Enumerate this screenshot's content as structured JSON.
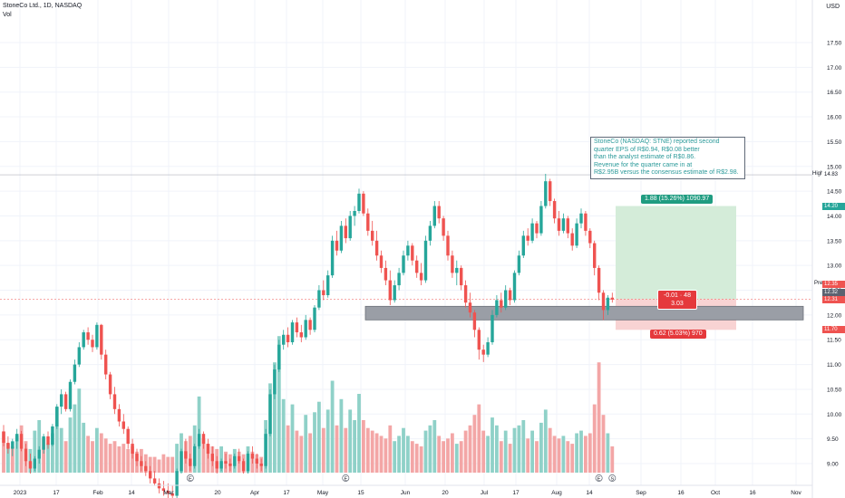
{
  "header": {
    "symbol_title": "StoneCo Ltd., 1D, NASDAQ",
    "volume_label": "Vol",
    "currency": "USD"
  },
  "annotation": {
    "lines": [
      "StoneCo (NASDAQ: STNE) reported second",
      "quarter EPS of R$0.94, R$0.08 better",
      "than the analyst estimate of R$0.86.",
      "Revenue for the quarter came in at",
      "R$2.95B versus the consensus estimate of R$2.98."
    ]
  },
  "position": {
    "profit_label": "1.88 (15.26%) 1090.97",
    "loss_label": "0.62 (5.03%) 970",
    "current_line1": "-0.01 · 48",
    "current_line2": "3.03",
    "target_price": 14.2,
    "entry_price": 12.32,
    "stop_price": 11.7
  },
  "price_tags": {
    "pre_label": "Pre",
    "pre_value": "12.35",
    "last_value": "12.32",
    "close_value": "12.31",
    "target_value": "14.20",
    "stop_value": "11.70",
    "high_label": "High",
    "high_value": "14.83"
  },
  "colors": {
    "up": "#26a69a",
    "down": "#ef5350",
    "up_vol": "#8fd1c8",
    "down_vol": "#f3a6a6",
    "grid": "#f0f3fa",
    "profit_zone": "#d4ecd9",
    "loss_zone": "#f8d3d3",
    "support_zone": "#9a9ea6"
  },
  "chart_data": {
    "type": "candlestick",
    "y_axis_ticks": [
      "17.50",
      "17.00",
      "16.50",
      "16.00",
      "15.50",
      "15.00",
      "14.50",
      "14.00",
      "13.50",
      "13.00",
      "12.50",
      "12.00",
      "11.50",
      "11.00",
      "10.50",
      "10.00",
      "9.50",
      "9.00"
    ],
    "x_axis_ticks": [
      "2023",
      "17",
      "Feb",
      "14",
      "Mar",
      "20",
      "Apr",
      "17",
      "May",
      "15",
      "Jun",
      "20",
      "Jul",
      "17",
      "Aug",
      "14",
      "Sep",
      "16",
      "Oct",
      "16",
      "Nov"
    ],
    "ylim": [
      8.7,
      17.9
    ],
    "support_zone": [
      11.97,
      12.12
    ],
    "high_line": 14.83,
    "event_markers": [
      {
        "label": "E",
        "session": 42
      },
      {
        "label": "E",
        "session": 77
      },
      {
        "label": "E",
        "session": 134
      },
      {
        "label": "S",
        "session": 137
      }
    ],
    "candles": [
      [
        9.65,
        9.78,
        9.35,
        9.42
      ],
      [
        9.42,
        9.55,
        9.2,
        9.3
      ],
      [
        9.3,
        9.5,
        9.15,
        9.45
      ],
      [
        9.45,
        9.7,
        9.3,
        9.6
      ],
      [
        9.6,
        9.66,
        9.25,
        9.3
      ],
      [
        9.3,
        9.4,
        8.95,
        9.05
      ],
      [
        9.05,
        9.2,
        8.8,
        8.9
      ],
      [
        8.9,
        9.15,
        8.85,
        9.1
      ],
      [
        9.1,
        9.35,
        9.0,
        9.28
      ],
      [
        9.28,
        9.6,
        9.2,
        9.55
      ],
      [
        9.55,
        9.65,
        9.3,
        9.38
      ],
      [
        9.38,
        9.8,
        9.35,
        9.75
      ],
      [
        9.75,
        10.2,
        9.7,
        10.15
      ],
      [
        10.15,
        10.5,
        10.0,
        10.4
      ],
      [
        10.4,
        10.45,
        10.05,
        10.1
      ],
      [
        10.1,
        10.7,
        10.05,
        10.65
      ],
      [
        10.65,
        11.1,
        10.6,
        11.0
      ],
      [
        11.0,
        11.45,
        10.95,
        11.35
      ],
      [
        11.35,
        11.7,
        11.3,
        11.65
      ],
      [
        11.65,
        11.75,
        11.4,
        11.5
      ],
      [
        11.5,
        11.6,
        11.25,
        11.35
      ],
      [
        11.35,
        11.85,
        11.3,
        11.8
      ],
      [
        11.8,
        11.82,
        11.1,
        11.2
      ],
      [
        11.2,
        11.3,
        10.7,
        10.8
      ],
      [
        10.8,
        10.85,
        10.3,
        10.4
      ],
      [
        10.4,
        10.55,
        10.0,
        10.1
      ],
      [
        10.1,
        10.2,
        9.75,
        9.85
      ],
      [
        9.85,
        10.0,
        9.6,
        9.7
      ],
      [
        9.7,
        9.75,
        9.3,
        9.4
      ],
      [
        9.4,
        9.5,
        9.1,
        9.2
      ],
      [
        9.2,
        9.3,
        8.95,
        9.05
      ],
      [
        9.05,
        9.15,
        8.85,
        8.95
      ],
      [
        8.95,
        9.05,
        8.75,
        8.85
      ],
      [
        8.85,
        8.95,
        8.6,
        8.7
      ],
      [
        8.7,
        8.85,
        8.55,
        8.6
      ],
      [
        8.6,
        8.7,
        8.4,
        8.5
      ],
      [
        8.5,
        8.65,
        8.35,
        8.45
      ],
      [
        8.45,
        8.6,
        8.3,
        8.4
      ],
      [
        8.4,
        8.55,
        8.25,
        8.35
      ],
      [
        8.35,
        8.9,
        8.3,
        8.85
      ],
      [
        8.85,
        9.3,
        8.8,
        9.25
      ],
      [
        9.25,
        9.5,
        9.0,
        9.1
      ],
      [
        9.1,
        9.2,
        8.85,
        8.95
      ],
      [
        8.95,
        9.4,
        8.9,
        9.35
      ],
      [
        9.35,
        9.7,
        9.3,
        9.6
      ],
      [
        9.6,
        9.65,
        9.3,
        9.4
      ],
      [
        9.4,
        9.5,
        9.1,
        9.2
      ],
      [
        9.2,
        9.35,
        8.95,
        9.05
      ],
      [
        9.05,
        9.15,
        8.8,
        8.9
      ],
      [
        8.9,
        9.1,
        8.85,
        9.05
      ],
      [
        9.05,
        9.2,
        8.9,
        9.0
      ],
      [
        9.0,
        9.1,
        8.85,
        8.95
      ],
      [
        8.95,
        9.2,
        8.9,
        9.15
      ],
      [
        9.15,
        9.3,
        9.0,
        9.05
      ],
      [
        9.05,
        9.1,
        8.8,
        8.85
      ],
      [
        8.85,
        9.25,
        8.8,
        9.2
      ],
      [
        9.2,
        9.35,
        9.0,
        9.1
      ],
      [
        9.1,
        9.2,
        8.9,
        9.0
      ],
      [
        9.0,
        9.1,
        8.85,
        8.95
      ],
      [
        8.95,
        9.7,
        8.9,
        9.6
      ],
      [
        9.6,
        10.5,
        9.55,
        10.4
      ],
      [
        10.4,
        11.0,
        10.3,
        10.9
      ],
      [
        10.9,
        11.5,
        10.85,
        11.4
      ],
      [
        11.4,
        11.7,
        11.3,
        11.6
      ],
      [
        11.6,
        11.75,
        11.35,
        11.45
      ],
      [
        11.45,
        11.9,
        11.4,
        11.85
      ],
      [
        11.85,
        11.95,
        11.55,
        11.65
      ],
      [
        11.65,
        11.8,
        11.45,
        11.55
      ],
      [
        11.55,
        12.0,
        11.5,
        11.9
      ],
      [
        11.9,
        11.95,
        11.6,
        11.7
      ],
      [
        11.7,
        12.2,
        11.65,
        12.15
      ],
      [
        12.15,
        12.6,
        12.1,
        12.5
      ],
      [
        12.5,
        12.7,
        12.3,
        12.4
      ],
      [
        12.4,
        12.9,
        12.35,
        12.8
      ],
      [
        12.8,
        13.6,
        12.75,
        13.5
      ],
      [
        13.5,
        13.7,
        13.2,
        13.3
      ],
      [
        13.3,
        13.9,
        13.25,
        13.8
      ],
      [
        13.8,
        13.95,
        13.45,
        13.55
      ],
      [
        13.55,
        14.1,
        13.5,
        14.0
      ],
      [
        14.0,
        14.2,
        13.8,
        14.1
      ],
      [
        14.1,
        14.55,
        14.05,
        14.45
      ],
      [
        14.45,
        14.5,
        14.0,
        14.05
      ],
      [
        14.05,
        14.15,
        13.6,
        13.7
      ],
      [
        13.7,
        13.9,
        13.4,
        13.5
      ],
      [
        13.5,
        13.7,
        13.1,
        13.2
      ],
      [
        13.2,
        13.3,
        12.85,
        12.95
      ],
      [
        12.95,
        13.1,
        12.6,
        12.7
      ],
      [
        12.7,
        12.9,
        12.2,
        12.3
      ],
      [
        12.3,
        12.7,
        12.25,
        12.6
      ],
      [
        12.6,
        12.95,
        12.5,
        12.85
      ],
      [
        12.85,
        13.3,
        12.8,
        13.2
      ],
      [
        13.2,
        13.5,
        13.1,
        13.4
      ],
      [
        13.4,
        13.45,
        13.0,
        13.1
      ],
      [
        13.1,
        13.2,
        12.75,
        12.85
      ],
      [
        12.85,
        13.05,
        12.6,
        12.7
      ],
      [
        12.7,
        13.6,
        12.65,
        13.5
      ],
      [
        13.5,
        13.9,
        13.4,
        13.8
      ],
      [
        13.8,
        14.3,
        13.75,
        14.2
      ],
      [
        14.2,
        14.3,
        13.85,
        13.95
      ],
      [
        13.95,
        14.0,
        13.5,
        13.6
      ],
      [
        13.6,
        13.7,
        13.1,
        13.2
      ],
      [
        13.2,
        13.3,
        12.75,
        12.85
      ],
      [
        12.85,
        13.1,
        12.6,
        12.95
      ],
      [
        12.95,
        13.0,
        12.5,
        12.6
      ],
      [
        12.6,
        12.7,
        12.15,
        12.25
      ],
      [
        12.25,
        12.45,
        11.95,
        12.05
      ],
      [
        12.05,
        12.1,
        11.55,
        11.7
      ],
      [
        11.7,
        11.75,
        11.1,
        11.3
      ],
      [
        11.3,
        11.4,
        11.05,
        11.2
      ],
      [
        11.2,
        11.55,
        11.15,
        11.45
      ],
      [
        11.45,
        12.1,
        11.4,
        12.0
      ],
      [
        12.0,
        12.4,
        11.95,
        12.3
      ],
      [
        12.3,
        12.45,
        12.05,
        12.15
      ],
      [
        12.15,
        12.6,
        12.1,
        12.5
      ],
      [
        12.5,
        12.55,
        12.2,
        12.3
      ],
      [
        12.3,
        12.9,
        12.25,
        12.85
      ],
      [
        12.85,
        13.3,
        12.8,
        13.2
      ],
      [
        13.2,
        13.7,
        13.15,
        13.6
      ],
      [
        13.6,
        13.75,
        13.4,
        13.5
      ],
      [
        13.5,
        13.95,
        13.45,
        13.85
      ],
      [
        13.85,
        13.9,
        13.55,
        13.65
      ],
      [
        13.65,
        14.3,
        13.6,
        14.2
      ],
      [
        14.2,
        14.85,
        14.15,
        14.7
      ],
      [
        14.7,
        14.75,
        14.2,
        14.3
      ],
      [
        14.3,
        14.35,
        13.85,
        13.95
      ],
      [
        13.95,
        14.1,
        13.6,
        13.7
      ],
      [
        13.7,
        14.05,
        13.65,
        13.95
      ],
      [
        13.95,
        14.0,
        13.55,
        13.65
      ],
      [
        13.65,
        13.75,
        13.3,
        13.4
      ],
      [
        13.4,
        13.95,
        13.35,
        13.85
      ],
      [
        13.85,
        14.15,
        13.75,
        14.05
      ],
      [
        14.05,
        14.1,
        13.6,
        13.7
      ],
      [
        13.7,
        13.75,
        13.35,
        13.45
      ],
      [
        13.45,
        13.5,
        12.8,
        12.95
      ],
      [
        12.95,
        13.0,
        12.3,
        12.45
      ],
      [
        12.45,
        12.5,
        11.9,
        12.1
      ],
      [
        12.1,
        12.4,
        12.0,
        12.35
      ],
      [
        12.35,
        12.45,
        12.25,
        12.31
      ]
    ],
    "volumes": [
      [
        0.78,
        "d"
      ],
      [
        0.55,
        "u"
      ],
      [
        0.5,
        "d"
      ],
      [
        0.7,
        "u"
      ],
      [
        0.9,
        "d"
      ],
      [
        0.6,
        "d"
      ],
      [
        0.45,
        "u"
      ],
      [
        0.8,
        "u"
      ],
      [
        1.0,
        "u"
      ],
      [
        0.65,
        "d"
      ],
      [
        0.55,
        "u"
      ],
      [
        0.75,
        "u"
      ],
      [
        1.25,
        "u"
      ],
      [
        0.85,
        "u"
      ],
      [
        0.6,
        "d"
      ],
      [
        1.05,
        "u"
      ],
      [
        1.3,
        "u"
      ],
      [
        1.6,
        "u"
      ],
      [
        0.95,
        "u"
      ],
      [
        0.7,
        "d"
      ],
      [
        0.6,
        "d"
      ],
      [
        0.85,
        "u"
      ],
      [
        0.75,
        "d"
      ],
      [
        0.65,
        "d"
      ],
      [
        0.55,
        "d"
      ],
      [
        0.6,
        "d"
      ],
      [
        0.5,
        "d"
      ],
      [
        0.55,
        "d"
      ],
      [
        0.45,
        "d"
      ],
      [
        0.5,
        "d"
      ],
      [
        0.4,
        "d"
      ],
      [
        0.45,
        "d"
      ],
      [
        0.35,
        "d"
      ],
      [
        0.3,
        "d"
      ],
      [
        0.3,
        "d"
      ],
      [
        0.25,
        "d"
      ],
      [
        0.35,
        "d"
      ],
      [
        0.3,
        "d"
      ],
      [
        0.3,
        "d"
      ],
      [
        0.55,
        "u"
      ],
      [
        0.75,
        "u"
      ],
      [
        0.6,
        "d"
      ],
      [
        0.7,
        "d"
      ],
      [
        0.9,
        "u"
      ],
      [
        1.45,
        "u"
      ],
      [
        0.65,
        "d"
      ],
      [
        0.55,
        "d"
      ],
      [
        0.5,
        "d"
      ],
      [
        0.45,
        "d"
      ],
      [
        0.5,
        "u"
      ],
      [
        0.4,
        "d"
      ],
      [
        0.35,
        "d"
      ],
      [
        0.45,
        "u"
      ],
      [
        0.4,
        "d"
      ],
      [
        0.35,
        "d"
      ],
      [
        0.5,
        "u"
      ],
      [
        0.4,
        "d"
      ],
      [
        0.35,
        "d"
      ],
      [
        0.3,
        "d"
      ],
      [
        1.0,
        "u"
      ],
      [
        1.7,
        "u"
      ],
      [
        2.1,
        "u"
      ],
      [
        2.6,
        "u"
      ],
      [
        1.4,
        "u"
      ],
      [
        0.9,
        "d"
      ],
      [
        1.3,
        "u"
      ],
      [
        0.8,
        "d"
      ],
      [
        0.7,
        "d"
      ],
      [
        1.1,
        "u"
      ],
      [
        0.75,
        "d"
      ],
      [
        1.15,
        "u"
      ],
      [
        1.35,
        "u"
      ],
      [
        0.85,
        "d"
      ],
      [
        1.2,
        "u"
      ],
      [
        1.75,
        "u"
      ],
      [
        0.9,
        "d"
      ],
      [
        1.4,
        "u"
      ],
      [
        0.85,
        "d"
      ],
      [
        1.2,
        "u"
      ],
      [
        1.0,
        "u"
      ],
      [
        1.5,
        "u"
      ],
      [
        1.0,
        "d"
      ],
      [
        0.85,
        "d"
      ],
      [
        0.8,
        "d"
      ],
      [
        0.75,
        "d"
      ],
      [
        0.7,
        "d"
      ],
      [
        0.65,
        "d"
      ],
      [
        0.9,
        "d"
      ],
      [
        0.6,
        "u"
      ],
      [
        0.7,
        "u"
      ],
      [
        0.85,
        "u"
      ],
      [
        0.7,
        "u"
      ],
      [
        0.6,
        "d"
      ],
      [
        0.55,
        "d"
      ],
      [
        0.5,
        "d"
      ],
      [
        0.8,
        "u"
      ],
      [
        0.9,
        "u"
      ],
      [
        1.0,
        "u"
      ],
      [
        0.7,
        "d"
      ],
      [
        0.6,
        "d"
      ],
      [
        0.65,
        "d"
      ],
      [
        0.75,
        "d"
      ],
      [
        0.55,
        "u"
      ],
      [
        0.6,
        "d"
      ],
      [
        0.8,
        "d"
      ],
      [
        0.9,
        "d"
      ],
      [
        1.1,
        "d"
      ],
      [
        1.3,
        "d"
      ],
      [
        0.8,
        "d"
      ],
      [
        0.7,
        "u"
      ],
      [
        1.05,
        "u"
      ],
      [
        0.9,
        "u"
      ],
      [
        0.6,
        "d"
      ],
      [
        0.8,
        "u"
      ],
      [
        0.55,
        "d"
      ],
      [
        0.85,
        "u"
      ],
      [
        0.9,
        "u"
      ],
      [
        1.0,
        "u"
      ],
      [
        0.65,
        "d"
      ],
      [
        0.8,
        "u"
      ],
      [
        0.6,
        "d"
      ],
      [
        0.95,
        "u"
      ],
      [
        1.2,
        "u"
      ],
      [
        0.85,
        "d"
      ],
      [
        0.7,
        "d"
      ],
      [
        0.65,
        "d"
      ],
      [
        0.7,
        "u"
      ],
      [
        0.6,
        "d"
      ],
      [
        0.55,
        "d"
      ],
      [
        0.75,
        "u"
      ],
      [
        0.8,
        "u"
      ],
      [
        0.7,
        "d"
      ],
      [
        0.75,
        "d"
      ],
      [
        1.3,
        "d"
      ],
      [
        2.1,
        "d"
      ],
      [
        1.1,
        "d"
      ],
      [
        0.75,
        "u"
      ],
      [
        0.5,
        "d"
      ]
    ]
  }
}
